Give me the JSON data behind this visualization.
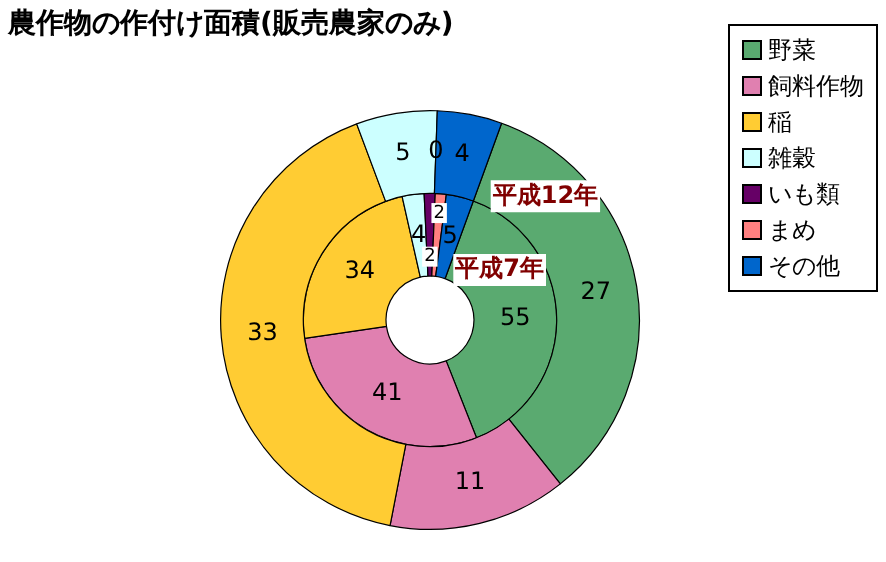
{
  "chart_data": {
    "type": "donut",
    "title": "農作物の作付け面積(販売農家のみ)",
    "categories": [
      "野菜",
      "飼料作物",
      "稲",
      "雑穀",
      "いも類",
      "まめ",
      "その他"
    ],
    "colors": [
      "#5aaa70",
      "#e080b0",
      "#ffcc33",
      "#ccffff",
      "#660066",
      "#ff8080",
      "#0066cc"
    ],
    "series": [
      {
        "name": "平成12年",
        "values": [
          27,
          11,
          33,
          5,
          0,
          0,
          4
        ],
        "value_labels": [
          "27",
          "11",
          "33",
          "5",
          "0",
          null,
          "4"
        ]
      },
      {
        "name": "平成7年",
        "values": [
          55,
          41,
          34,
          4,
          2,
          2,
          5
        ],
        "value_labels": [
          "55",
          "41",
          "34",
          "4",
          "2",
          "2",
          "5"
        ]
      }
    ],
    "legend": "top right"
  }
}
